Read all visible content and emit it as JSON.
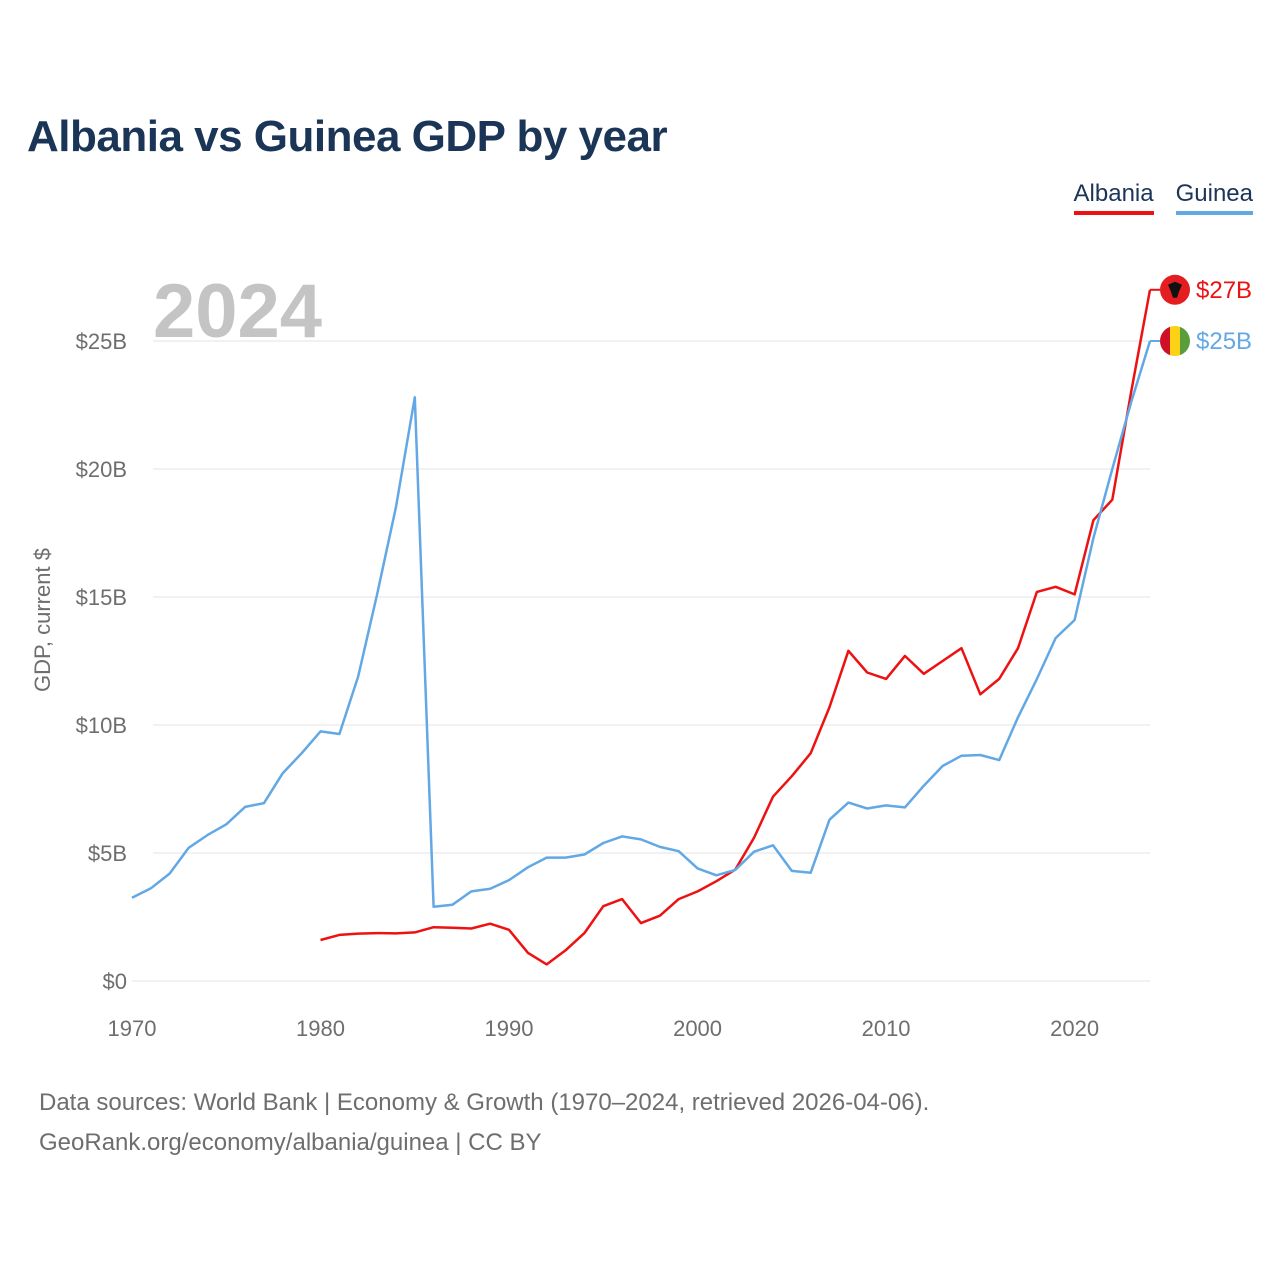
{
  "title": "Albania vs Guinea GDP by year",
  "legend": [
    {
      "label": "Albania",
      "color": "#ee1111"
    },
    {
      "label": "Guinea",
      "color": "#62a8e5"
    }
  ],
  "footer": {
    "line1": "Data sources: World Bank | Economy & Growth (1970–2024, retrieved 2026-04-06).",
    "line2": "GeoRank.org/economy/albania/guinea | CC BY"
  },
  "chart_data": {
    "type": "line",
    "year_label": "2024",
    "ylabel": "GDP, current $",
    "xlim": [
      1970,
      2024
    ],
    "ylim": [
      0,
      25
    ],
    "xticks": [
      1970,
      1980,
      1990,
      2000,
      2010,
      2020
    ],
    "xtick_labels": [
      "1970",
      "1980",
      "1990",
      "2000",
      "2010",
      "2020"
    ],
    "yticks": [
      0,
      5,
      10,
      15,
      20,
      25
    ],
    "ytick_labels": [
      "$0",
      "$5B",
      "$10B",
      "$15B",
      "$20B",
      "$25B"
    ],
    "grid": true,
    "units": "billions USD",
    "series": [
      {
        "name": "Albania",
        "color": "#ee1111",
        "end_label": "$27B",
        "flag": "albania-flag",
        "x": [
          1980,
          1981,
          1982,
          1983,
          1984,
          1985,
          1986,
          1987,
          1988,
          1989,
          1990,
          1991,
          1992,
          1993,
          1994,
          1995,
          1996,
          1997,
          1998,
          1999,
          2000,
          2001,
          2002,
          2003,
          2004,
          2005,
          2006,
          2007,
          2008,
          2009,
          2010,
          2011,
          2012,
          2013,
          2014,
          2015,
          2016,
          2017,
          2018,
          2019,
          2020,
          2021,
          2022,
          2023,
          2024
        ],
        "values": [
          1.6,
          1.8,
          1.85,
          1.87,
          1.86,
          1.9,
          2.1,
          2.08,
          2.05,
          2.24,
          2.0,
          1.1,
          0.65,
          1.2,
          1.87,
          2.92,
          3.2,
          2.26,
          2.55,
          3.2,
          3.5,
          3.9,
          4.35,
          5.6,
          7.2,
          8.0,
          8.9,
          10.7,
          12.9,
          12.05,
          11.8,
          12.7,
          12.0,
          12.5,
          13.0,
          11.2,
          11.8,
          13.0,
          15.2,
          15.4,
          15.1,
          18.0,
          18.8,
          23.0,
          27.0
        ]
      },
      {
        "name": "Guinea",
        "color": "#62a8e5",
        "end_label": "$25B",
        "flag": "guinea-flag",
        "x": [
          1970,
          1971,
          1972,
          1973,
          1974,
          1975,
          1976,
          1977,
          1978,
          1979,
          1980,
          1981,
          1982,
          1983,
          1984,
          1985,
          1986,
          1987,
          1988,
          1989,
          1990,
          1991,
          1992,
          1993,
          1994,
          1995,
          1996,
          1997,
          1998,
          1999,
          2000,
          2001,
          2002,
          2003,
          2004,
          2005,
          2006,
          2007,
          2008,
          2009,
          2010,
          2011,
          2012,
          2013,
          2014,
          2015,
          2016,
          2017,
          2018,
          2019,
          2020,
          2021,
          2022,
          2023,
          2024
        ],
        "values": [
          3.25,
          3.62,
          4.2,
          5.2,
          5.7,
          6.12,
          6.8,
          6.95,
          8.12,
          8.9,
          9.75,
          9.65,
          11.9,
          15.1,
          18.5,
          22.8,
          2.9,
          2.98,
          3.5,
          3.6,
          3.94,
          4.44,
          4.82,
          4.82,
          4.94,
          5.39,
          5.65,
          5.53,
          5.24,
          5.07,
          4.4,
          4.13,
          4.34,
          5.05,
          5.3,
          4.3,
          4.23,
          6.3,
          6.97,
          6.74,
          6.86,
          6.78,
          7.63,
          8.4,
          8.8,
          8.83,
          8.63,
          10.3,
          11.8,
          13.4,
          14.1,
          17.3,
          20.0,
          22.6,
          25.0
        ]
      }
    ]
  }
}
